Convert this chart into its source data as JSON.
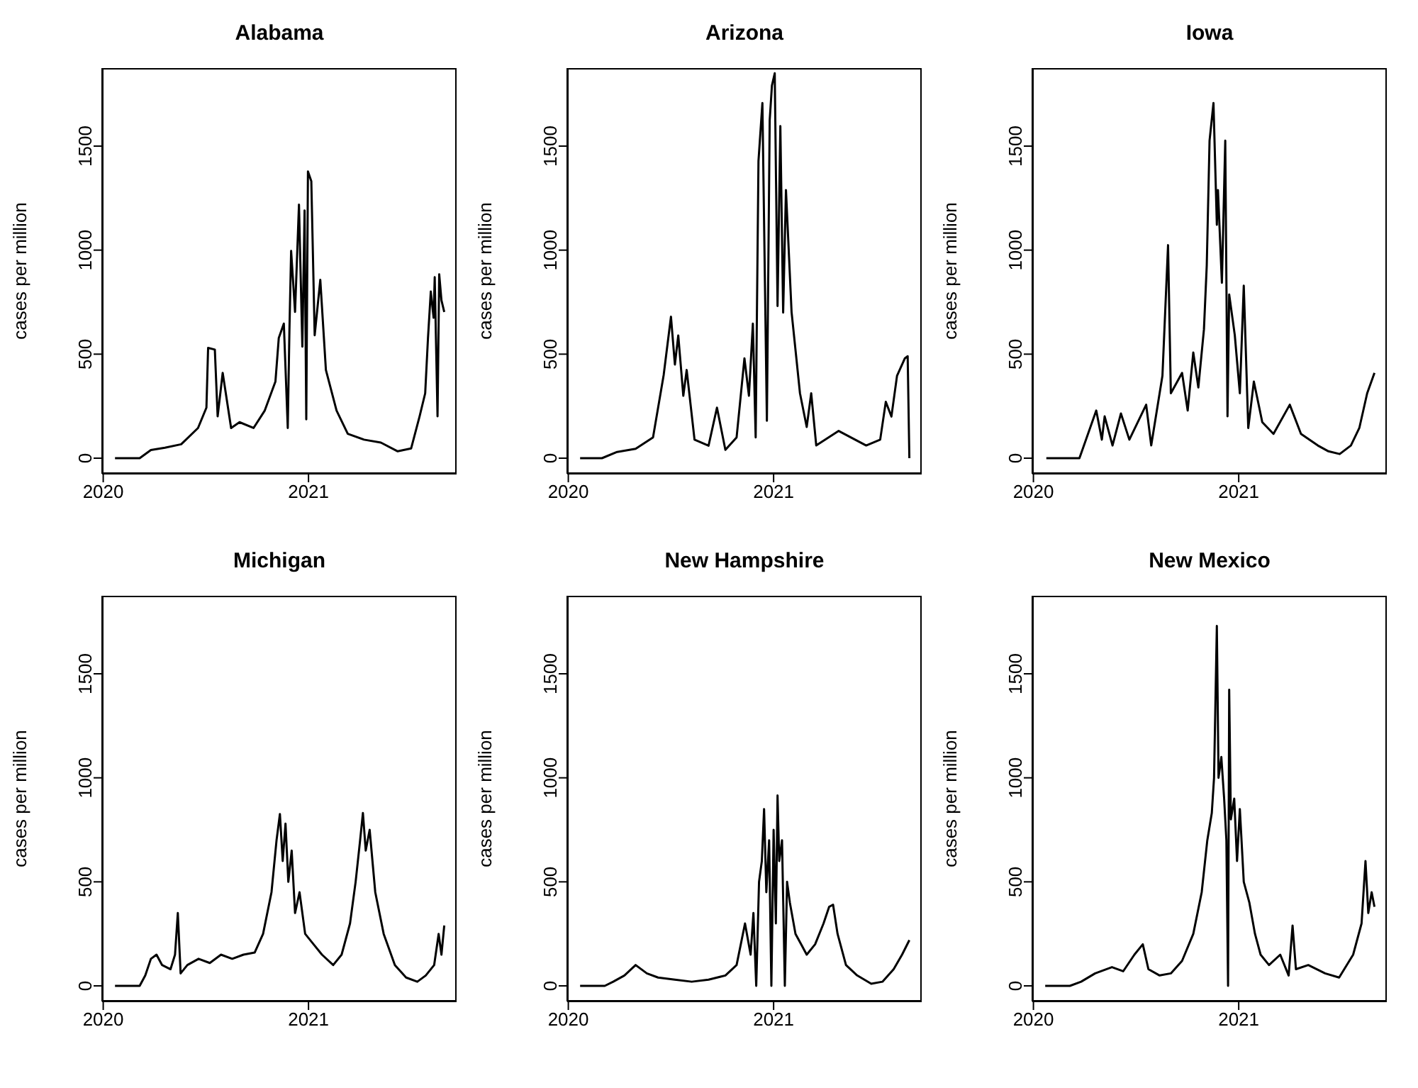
{
  "chart_data": [
    {
      "type": "line",
      "title": "Alabama",
      "ylabel": "cases per million",
      "color": "#000000",
      "xlim": [
        "2019-12-30",
        "2021-09-22"
      ],
      "xticks": [
        {
          "value": "2020-01-01",
          "label": "2020"
        },
        {
          "value": "2021-01-01",
          "label": "2021"
        }
      ],
      "ylim": [
        -75,
        1875
      ],
      "yticks": [
        0,
        500,
        1000,
        1500
      ],
      "x": [
        "2020-01-22",
        "2020-03-06",
        "2020-03-26",
        "2020-04-20",
        "2020-05-19",
        "2020-06-18",
        "2020-07-03",
        "2020-07-06",
        "2020-07-18",
        "2020-07-23",
        "2020-08-01",
        "2020-08-16",
        "2020-08-31",
        "2020-09-25",
        "2020-10-15",
        "2020-11-03",
        "2020-11-09",
        "2020-11-18",
        "2020-11-25",
        "2020-11-28",
        "2020-12-01",
        "2020-12-08",
        "2020-12-15",
        "2020-12-21",
        "2020-12-25",
        "2020-12-28",
        "2020-12-31",
        "2021-01-06",
        "2021-01-12",
        "2021-01-22",
        "2021-02-01",
        "2021-02-20",
        "2021-03-12",
        "2021-04-10",
        "2021-05-10",
        "2021-06-09",
        "2021-07-03",
        "2021-07-18",
        "2021-07-28",
        "2021-08-02",
        "2021-08-07",
        "2021-08-12",
        "2021-08-14",
        "2021-08-19",
        "2021-08-22",
        "2021-08-26",
        "2021-08-31"
      ],
      "values": [
        0,
        0,
        39,
        50,
        67,
        145,
        243,
        530,
        522,
        201,
        410,
        145,
        173,
        145,
        229,
        368,
        578,
        647,
        145,
        619,
        996,
        703,
        1219,
        536,
        1191,
        187,
        1378,
        1331,
        591,
        857,
        424,
        229,
        117,
        89,
        75,
        33,
        47,
        201,
        312,
        578,
        801,
        675,
        870,
        201,
        884,
        759,
        703
      ]
    },
    {
      "type": "line",
      "title": "Arizona",
      "ylabel": "cases per million",
      "color": "#000000",
      "xlim": [
        "2019-12-30",
        "2021-09-22"
      ],
      "xticks": [
        {
          "value": "2020-01-01",
          "label": "2020"
        },
        {
          "value": "2021-01-01",
          "label": "2021"
        }
      ],
      "ylim": [
        -75,
        1875
      ],
      "yticks": [
        0,
        500,
        1000,
        1500
      ],
      "x": [
        "2020-01-22",
        "2020-03-01",
        "2020-03-28",
        "2020-04-30",
        "2020-05-31",
        "2020-06-19",
        "2020-07-02",
        "2020-07-09",
        "2020-07-15",
        "2020-07-24",
        "2020-07-30",
        "2020-08-13",
        "2020-09-07",
        "2020-09-22",
        "2020-10-07",
        "2020-10-27",
        "2020-11-10",
        "2020-11-18",
        "2020-11-25",
        "2020-11-30",
        "2020-12-05",
        "2020-12-12",
        "2020-12-20",
        "2020-12-25",
        "2020-12-29",
        "2021-01-03",
        "2021-01-08",
        "2021-01-13",
        "2021-01-18",
        "2021-01-23",
        "2021-02-02",
        "2021-02-17",
        "2021-03-01",
        "2021-03-09",
        "2021-03-18",
        "2021-04-27",
        "2021-06-15",
        "2021-07-10",
        "2021-07-20",
        "2021-07-30",
        "2021-08-09",
        "2021-08-23",
        "2021-08-28",
        "2021-08-31"
      ],
      "values": [
        0,
        0,
        30,
        45,
        100,
        400,
        680,
        450,
        590,
        300,
        424,
        89,
        60,
        243,
        40,
        100,
        480,
        300,
        647,
        100,
        1428,
        1707,
        180,
        1624,
        1791,
        1850,
        731,
        1596,
        700,
        1289,
        703,
        312,
        150,
        312,
        61,
        131,
        61,
        89,
        271,
        200,
        396,
        480,
        490,
        0
      ]
    },
    {
      "type": "line",
      "title": "Iowa",
      "ylabel": "cases per million",
      "color": "#000000",
      "xlim": [
        "2019-12-30",
        "2021-09-22"
      ],
      "xticks": [
        {
          "value": "2020-01-01",
          "label": "2020"
        },
        {
          "value": "2021-01-01",
          "label": "2021"
        }
      ],
      "ylim": [
        -75,
        1875
      ],
      "yticks": [
        0,
        500,
        1000,
        1500
      ],
      "x": [
        "2020-01-24",
        "2020-03-23",
        "2020-04-22",
        "2020-05-02",
        "2020-05-07",
        "2020-05-21",
        "2020-06-05",
        "2020-06-20",
        "2020-07-20",
        "2020-07-29",
        "2020-08-18",
        "2020-08-28",
        "2020-09-02",
        "2020-09-22",
        "2020-10-02",
        "2020-10-12",
        "2020-10-21",
        "2020-10-31",
        "2020-11-05",
        "2020-11-10",
        "2020-11-17",
        "2020-11-23",
        "2020-11-25",
        "2020-12-02",
        "2020-12-08",
        "2020-12-12",
        "2020-12-15",
        "2020-12-25",
        "2021-01-03",
        "2021-01-10",
        "2021-01-18",
        "2021-01-28",
        "2021-02-12",
        "2021-03-04",
        "2021-04-02",
        "2021-04-22",
        "2021-05-22",
        "2021-06-10",
        "2021-06-30",
        "2021-07-20",
        "2021-08-04",
        "2021-08-18",
        "2021-08-31"
      ],
      "values": [
        0,
        0,
        229,
        89,
        201,
        61,
        215,
        89,
        257,
        61,
        396,
        1024,
        312,
        410,
        229,
        508,
        340,
        619,
        926,
        1526,
        1707,
        1122,
        1289,
        843,
        1526,
        201,
        787,
        591,
        312,
        829,
        145,
        368,
        173,
        117,
        257,
        117,
        61,
        33,
        20,
        61,
        145,
        312,
        410
      ]
    },
    {
      "type": "line",
      "title": "Michigan",
      "ylabel": "cases per million",
      "color": "#000000",
      "xlim": [
        "2019-12-30",
        "2021-09-22"
      ],
      "xticks": [
        {
          "value": "2020-01-01",
          "label": "2020"
        },
        {
          "value": "2021-01-01",
          "label": "2021"
        }
      ],
      "ylim": [
        -75,
        1875
      ],
      "yticks": [
        0,
        500,
        1000,
        1500
      ],
      "x": [
        "2020-01-22",
        "2020-03-06",
        "2020-03-16",
        "2020-03-26",
        "2020-04-05",
        "2020-04-15",
        "2020-04-30",
        "2020-05-08",
        "2020-05-13",
        "2020-05-18",
        "2020-05-30",
        "2020-06-19",
        "2020-07-09",
        "2020-07-29",
        "2020-08-18",
        "2020-09-07",
        "2020-09-27",
        "2020-10-12",
        "2020-10-27",
        "2020-11-05",
        "2020-11-11",
        "2020-11-16",
        "2020-11-21",
        "2020-11-26",
        "2020-12-02",
        "2020-12-08",
        "2020-12-16",
        "2020-12-26",
        "2021-01-10",
        "2021-01-25",
        "2021-02-14",
        "2021-03-01",
        "2021-03-16",
        "2021-03-26",
        "2021-04-03",
        "2021-04-08",
        "2021-04-13",
        "2021-04-20",
        "2021-04-30",
        "2021-05-15",
        "2021-06-04",
        "2021-06-24",
        "2021-07-14",
        "2021-07-29",
        "2021-08-13",
        "2021-08-21",
        "2021-08-26",
        "2021-08-31"
      ],
      "values": [
        0,
        0,
        50,
        130,
        150,
        100,
        80,
        150,
        350,
        60,
        100,
        130,
        110,
        150,
        130,
        150,
        160,
        250,
        450,
        700,
        826,
        600,
        780,
        500,
        650,
        350,
        450,
        250,
        200,
        150,
        100,
        150,
        300,
        500,
        700,
        831,
        650,
        750,
        450,
        250,
        100,
        40,
        20,
        50,
        100,
        250,
        150,
        290
      ]
    },
    {
      "type": "line",
      "title": "New Hampshire",
      "ylabel": "cases per million",
      "color": "#000000",
      "xlim": [
        "2019-12-30",
        "2021-09-22"
      ],
      "xticks": [
        {
          "value": "2020-01-01",
          "label": "2020"
        },
        {
          "value": "2021-01-01",
          "label": "2021"
        }
      ],
      "ylim": [
        -75,
        1875
      ],
      "yticks": [
        0,
        500,
        1000,
        1500
      ],
      "x": [
        "2020-01-22",
        "2020-03-06",
        "2020-03-21",
        "2020-04-10",
        "2020-04-30",
        "2020-05-20",
        "2020-06-09",
        "2020-07-09",
        "2020-08-08",
        "2020-09-07",
        "2020-10-07",
        "2020-10-27",
        "2020-11-11",
        "2020-11-21",
        "2020-11-26",
        "2020-12-01",
        "2020-12-06",
        "2020-12-11",
        "2020-12-15",
        "2020-12-19",
        "2020-12-24",
        "2020-12-28",
        "2021-01-01",
        "2021-01-05",
        "2021-01-08",
        "2021-01-11",
        "2021-01-16",
        "2021-01-21",
        "2021-01-25",
        "2021-01-30",
        "2021-02-09",
        "2021-02-19",
        "2021-03-01",
        "2021-03-16",
        "2021-03-31",
        "2021-04-10",
        "2021-04-17",
        "2021-04-25",
        "2021-05-10",
        "2021-05-30",
        "2021-06-24",
        "2021-07-14",
        "2021-08-03",
        "2021-08-18",
        "2021-08-31"
      ],
      "values": [
        0,
        0,
        20,
        50,
        100,
        60,
        40,
        30,
        20,
        30,
        50,
        100,
        300,
        150,
        350,
        0,
        500,
        600,
        850,
        450,
        700,
        0,
        750,
        300,
        915,
        600,
        700,
        0,
        500,
        400,
        250,
        200,
        150,
        200,
        300,
        380,
        390,
        250,
        100,
        50,
        10,
        20,
        80,
        150,
        220
      ]
    },
    {
      "type": "line",
      "title": "New Mexico",
      "ylabel": "cases per million",
      "color": "#000000",
      "xlim": [
        "2019-12-30",
        "2021-09-22"
      ],
      "xticks": [
        {
          "value": "2020-01-01",
          "label": "2020"
        },
        {
          "value": "2021-01-01",
          "label": "2021"
        }
      ],
      "ylim": [
        -75,
        1875
      ],
      "yticks": [
        0,
        500,
        1000,
        1500
      ],
      "x": [
        "2020-01-22",
        "2020-03-06",
        "2020-03-26",
        "2020-04-20",
        "2020-05-20",
        "2020-06-09",
        "2020-06-29",
        "2020-07-14",
        "2020-07-24",
        "2020-08-13",
        "2020-09-02",
        "2020-09-22",
        "2020-10-12",
        "2020-10-27",
        "2020-11-06",
        "2020-11-14",
        "2020-11-18",
        "2020-11-23",
        "2020-11-26",
        "2020-12-01",
        "2020-12-06",
        "2020-12-10",
        "2020-12-13",
        "2020-12-15",
        "2020-12-18",
        "2020-12-24",
        "2020-12-29",
        "2021-01-03",
        "2021-01-10",
        "2021-01-20",
        "2021-01-30",
        "2021-02-09",
        "2021-02-24",
        "2021-03-16",
        "2021-03-31",
        "2021-04-07",
        "2021-04-13",
        "2021-05-05",
        "2021-06-04",
        "2021-06-29",
        "2021-07-24",
        "2021-08-08",
        "2021-08-15",
        "2021-08-20",
        "2021-08-26",
        "2021-08-31"
      ],
      "values": [
        0,
        0,
        20,
        60,
        90,
        70,
        150,
        200,
        80,
        50,
        60,
        120,
        250,
        450,
        700,
        831,
        1000,
        1730,
        1000,
        1100,
        900,
        700,
        0,
        1423,
        800,
        900,
        600,
        850,
        500,
        400,
        250,
        150,
        100,
        150,
        50,
        290,
        80,
        100,
        60,
        40,
        150,
        300,
        600,
        350,
        450,
        380
      ]
    }
  ]
}
